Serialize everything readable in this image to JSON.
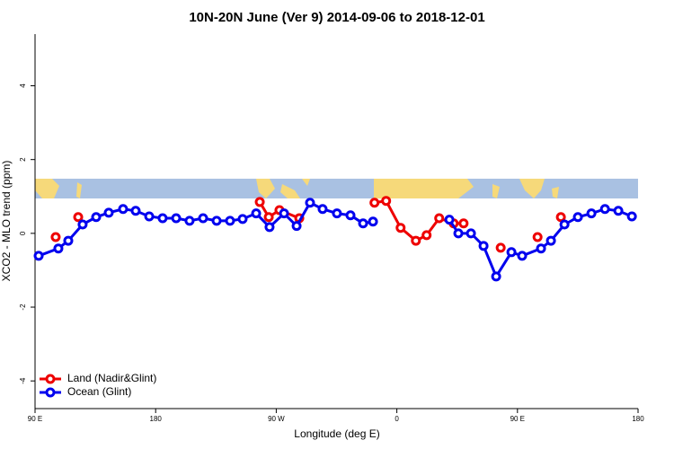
{
  "chart_data": {
    "type": "line",
    "title": "10N-20N June (Ver 9)   2014-09-06 to 2018-12-01",
    "x_label": "Longitude (deg E)",
    "y_label": "XCO2 - MLO trend (ppm)",
    "xlim": [
      90,
      540
    ],
    "ylim": [
      -4.75,
      5.4
    ],
    "xticks": [
      {
        "value": 90,
        "label": "90 E"
      },
      180,
      {
        "value": 270,
        "label": "90 W"
      },
      {
        "value": 360,
        "label": "0"
      },
      {
        "value": 450,
        "label": "90 E"
      },
      {
        "value": 540,
        "label": "180"
      }
    ],
    "yticks": [
      -4,
      -2,
      0,
      2,
      4
    ],
    "legend": "bottom-left",
    "series": [
      {
        "name": "Land (Nadir&Glint)",
        "color": "#ee0000",
        "x": [
          105.4,
          null,
          122.2,
          null,
          257.7,
          264.4,
          272.4,
          287.2,
          null,
          343.3,
          352,
          362.8,
          374.2,
          382.2,
          391.6,
          402.4,
          409.8,
          null,
          437.5,
          null,
          465,
          null,
          482.4
        ],
        "values": [
          -0.1,
          null,
          0.44,
          null,
          0.85,
          0.44,
          0.63,
          0.41,
          null,
          0.83,
          0.88,
          0.15,
          -0.2,
          -0.05,
          0.41,
          0.27,
          0.27,
          null,
          -0.39,
          null,
          -0.1,
          null,
          0.44
        ]
      },
      {
        "name": "Ocean (Glint)",
        "color": "#0000ee",
        "x": [
          92.7,
          107.4,
          114.8,
          125.5,
          135.6,
          145,
          155.7,
          165.1,
          175.2,
          185.2,
          195.3,
          205.3,
          215.4,
          225.5,
          235.5,
          244.9,
          255,
          265,
          275.8,
          285.2,
          295.2,
          304.6,
          315.3,
          325.4,
          334.8,
          342.2,
          null,
          399.2,
          405.9,
          415.3,
          424.7,
          434.1,
          445.5,
          453.5,
          467.6,
          475,
          485.1,
          495.1,
          505.2,
          515.3,
          525.3,
          535.4
        ],
        "values": [
          -0.61,
          -0.41,
          -0.2,
          0.24,
          0.44,
          0.56,
          0.66,
          0.61,
          0.46,
          0.41,
          0.41,
          0.34,
          0.41,
          0.34,
          0.34,
          0.39,
          0.54,
          0.17,
          0.54,
          0.2,
          0.83,
          0.66,
          0.54,
          0.49,
          0.27,
          0.32,
          null,
          0.37,
          0.0,
          0.0,
          -0.34,
          -1.17,
          -0.51,
          -0.61,
          -0.41,
          -0.2,
          0.24,
          0.44,
          0.54,
          0.66,
          0.61,
          0.46
        ]
      }
    ]
  }
}
